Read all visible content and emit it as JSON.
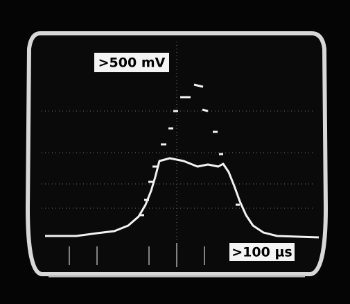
{
  "screen": {
    "amplitude_label": ">500 mV",
    "time_label": ">100 µs"
  }
}
